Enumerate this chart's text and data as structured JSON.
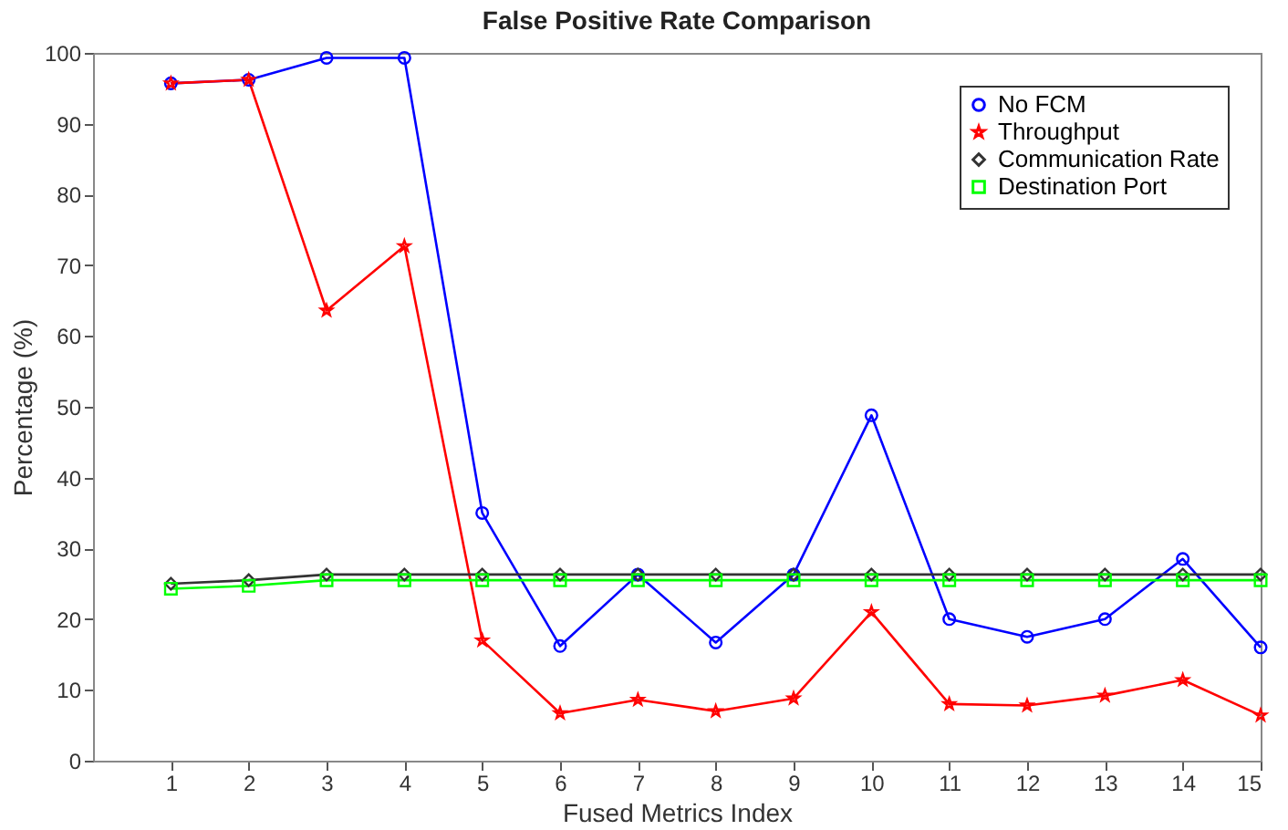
{
  "chart_data": {
    "type": "line",
    "title": "False Positive Rate Comparison",
    "xlabel": "Fused Metrics Index",
    "ylabel": "Percentage (%)",
    "x": [
      1,
      2,
      3,
      4,
      5,
      6,
      7,
      8,
      9,
      10,
      11,
      12,
      13,
      14,
      15
    ],
    "series": [
      {
        "name": "No FCM",
        "color": "#0000ff",
        "marker": "circle",
        "values": [
          95.7,
          96.2,
          99.3,
          99.3,
          35,
          16.2,
          26.3,
          16.7,
          26.3,
          48.8,
          20,
          17.5,
          20,
          28.5,
          16
        ]
      },
      {
        "name": "Throughput",
        "color": "#ff0000",
        "marker": "star",
        "values": [
          95.7,
          96.2,
          63.6,
          72.7,
          17,
          6.7,
          8.6,
          7,
          8.8,
          21,
          8,
          7.8,
          9.2,
          11.4,
          6.4
        ]
      },
      {
        "name": "Communication Rate",
        "color": "#333333",
        "marker": "diamond",
        "values": [
          25,
          25.5,
          26.3,
          26.3,
          26.3,
          26.3,
          26.3,
          26.3,
          26.3,
          26.3,
          26.3,
          26.3,
          26.3,
          26.3,
          26.3
        ]
      },
      {
        "name": "Destination Port",
        "color": "#00ff00",
        "marker": "square",
        "values": [
          24.3,
          24.7,
          25.5,
          25.5,
          25.5,
          25.5,
          25.5,
          25.5,
          25.5,
          25.5,
          25.5,
          25.5,
          25.5,
          25.5,
          25.5
        ]
      }
    ],
    "xlim": [
      0,
      15
    ],
    "xticks": [
      1,
      2,
      3,
      4,
      5,
      6,
      7,
      8,
      9,
      10,
      11,
      12,
      13,
      14,
      15
    ],
    "ylim": [
      0,
      100
    ],
    "yticks": [
      0,
      10,
      20,
      30,
      40,
      50,
      60,
      70,
      80,
      90,
      100
    ],
    "grid": false,
    "legend": "top right",
    "line_style": "solid"
  }
}
